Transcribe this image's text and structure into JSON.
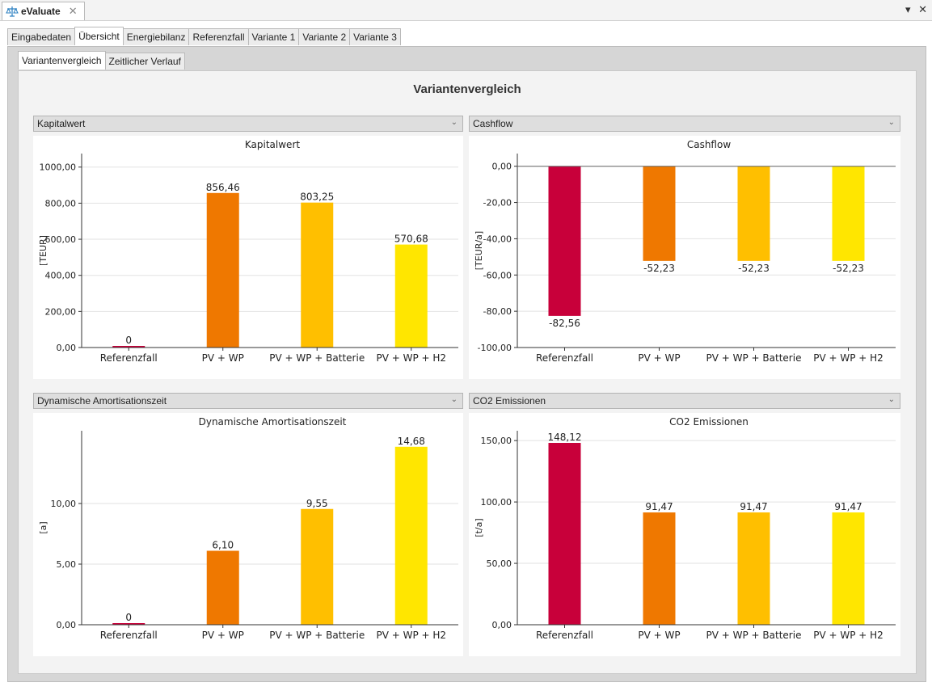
{
  "window": {
    "app_tab_label": "eValuate",
    "close_symbol": "✕",
    "menu_symbol": "▾",
    "window_close_symbol": "✕"
  },
  "main_tabs": [
    "Eingabedaten",
    "Übersicht",
    "Energiebilanz",
    "Referenzfall",
    "Variante 1",
    "Variante 2",
    "Variante 3"
  ],
  "main_tab_active": 1,
  "sub_tabs": [
    "Variantenvergleich",
    "Zeitlicher Verlauf"
  ],
  "sub_tab_active": 0,
  "page_title": "Variantenvergleich",
  "dropdowns": {
    "top_left": "Kapitalwert",
    "top_right": "Cashflow",
    "bottom_left": "Dynamische Amortisationszeit",
    "bottom_right": "CO2 Emissionen"
  },
  "colors": {
    "referenzfall": "#c8003a",
    "pv_wp": "#ef7800",
    "pv_wp_batterie": "#ffbf00",
    "pv_wp_h2": "#ffe600"
  },
  "chart_data": [
    {
      "type": "bar",
      "title": "Kapitalwert",
      "ylabel": "[TEUR]",
      "categories": [
        "Referenzfall",
        "PV + WP",
        "PV + WP + Batterie",
        "PV + WP + H2"
      ],
      "values": [
        0,
        856.46,
        803.25,
        570.68
      ],
      "value_labels": [
        "0",
        "856,46",
        "803,25",
        "570,68"
      ],
      "yticks": [
        0,
        200,
        400,
        600,
        800,
        1000
      ],
      "ytick_labels": [
        "0,00",
        "200,00",
        "400,00",
        "600,00",
        "800,00",
        "1000,00"
      ],
      "ylim": [
        0,
        1075
      ],
      "grid": true
    },
    {
      "type": "bar",
      "title": "Cashflow",
      "ylabel": "[TEUR/a]",
      "categories": [
        "Referenzfall",
        "PV + WP",
        "PV + WP + Batterie",
        "PV + WP + H2"
      ],
      "values": [
        -82.56,
        -52.23,
        -52.23,
        -52.23
      ],
      "value_labels": [
        "-82,56",
        "-52,23",
        "-52,23",
        "-52,23"
      ],
      "yticks": [
        -100,
        -80,
        -60,
        -40,
        -20,
        0
      ],
      "ytick_labels": [
        "-100,00",
        "-80,00",
        "-60,00",
        "-40,00",
        "-20,00",
        "0,00"
      ],
      "ylim": [
        -100,
        7
      ],
      "grid": true
    },
    {
      "type": "bar",
      "title": "Dynamische Amortisationszeit",
      "ylabel": "[a]",
      "categories": [
        "Referenzfall",
        "PV + WP",
        "PV + WP + Batterie",
        "PV + WP + H2"
      ],
      "values": [
        0,
        6.1,
        9.55,
        14.68
      ],
      "value_labels": [
        "0",
        "6,10",
        "9,55",
        "14,68"
      ],
      "yticks": [
        0,
        5,
        10
      ],
      "ytick_labels": [
        "0,00",
        "5,00",
        "10,00"
      ],
      "ylim": [
        0,
        16
      ],
      "grid": true
    },
    {
      "type": "bar",
      "title": "CO2 Emissionen",
      "ylabel": "[t/a]",
      "categories": [
        "Referenzfall",
        "PV + WP",
        "PV + WP + Batterie",
        "PV + WP + H2"
      ],
      "values": [
        148.12,
        91.47,
        91.47,
        91.47
      ],
      "value_labels": [
        "148,12",
        "91,47",
        "91,47",
        "91,47"
      ],
      "yticks": [
        0,
        50,
        100,
        150
      ],
      "ytick_labels": [
        "0,00",
        "50,00",
        "100,00",
        "150,00"
      ],
      "ylim": [
        0,
        158
      ],
      "grid": true
    }
  ]
}
